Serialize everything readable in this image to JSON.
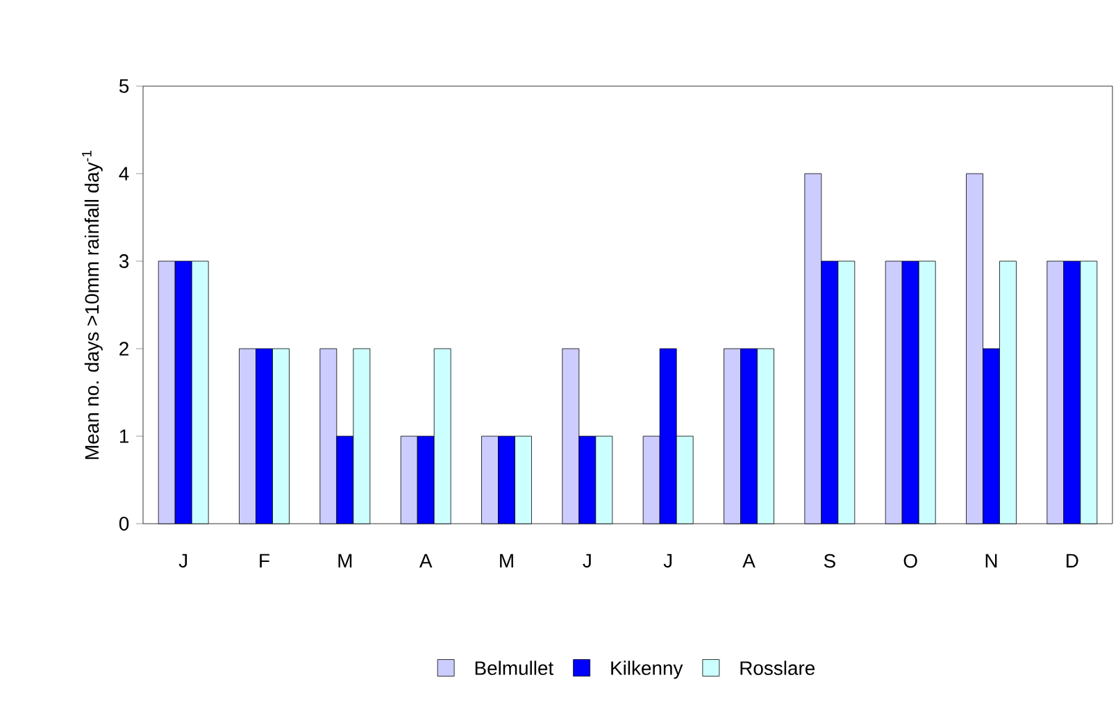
{
  "chart_data": {
    "type": "bar",
    "ylabel": "Mean no. days >10mm rainfall day$^{-1}$",
    "categories": [
      "J",
      "F",
      "M",
      "A",
      "M",
      "J",
      "J",
      "A",
      "S",
      "O",
      "N",
      "D"
    ],
    "series": [
      {
        "name": "Belmullet",
        "color": "#ccccff",
        "values": [
          3,
          2,
          2,
          1,
          1,
          2,
          1,
          2,
          4,
          3,
          4,
          3
        ]
      },
      {
        "name": "Kilkenny",
        "color": "#0000ff",
        "values": [
          3,
          2,
          1,
          1,
          1,
          1,
          2,
          2,
          3,
          3,
          2,
          3
        ]
      },
      {
        "name": "Rosslare",
        "color": "#ccffff",
        "values": [
          3,
          2,
          2,
          2,
          1,
          1,
          1,
          2,
          3,
          3,
          3,
          3
        ]
      }
    ],
    "ylim": [
      0,
      5
    ],
    "yticks": [
      0,
      1,
      2,
      3,
      4,
      5
    ],
    "grid": false,
    "legend": "bottom"
  }
}
